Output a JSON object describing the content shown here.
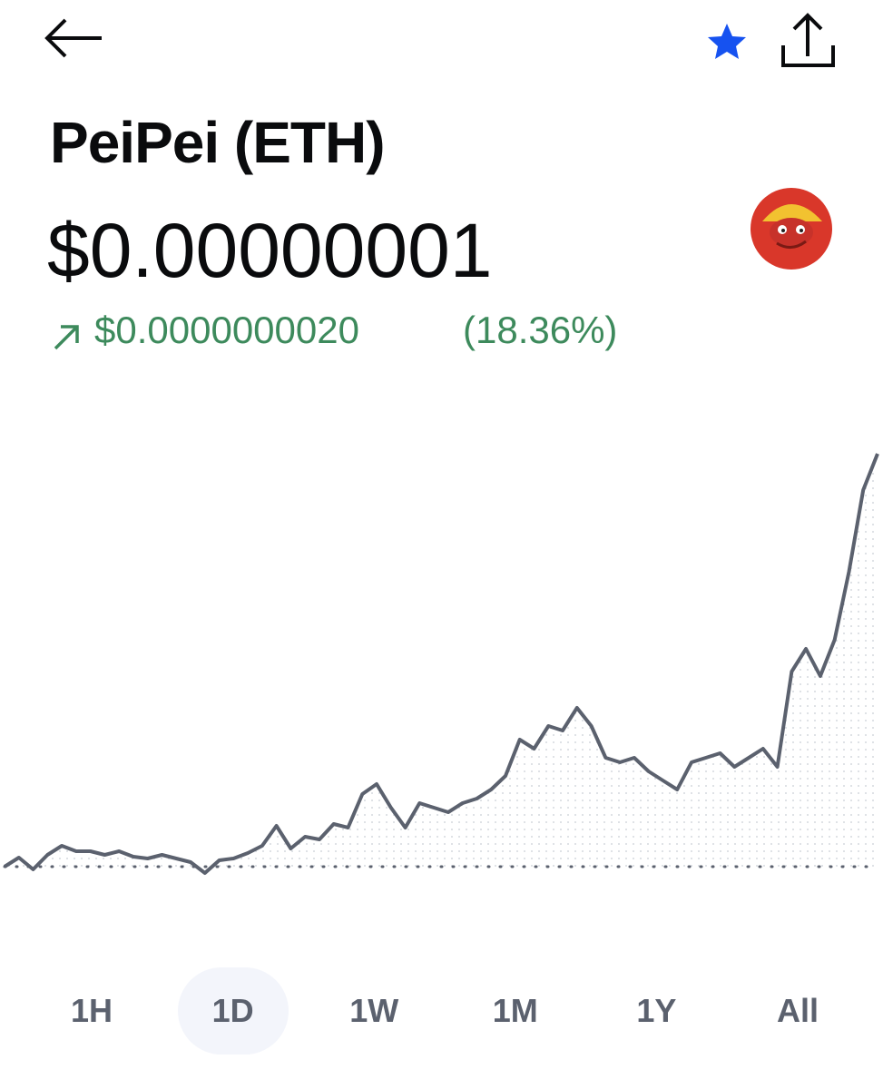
{
  "header": {
    "title": "PeiPei (ETH)",
    "price": "$0.00000001",
    "change": "$0.0000000020",
    "change_percent": "(18.36%)"
  },
  "chart_data": {
    "type": "line",
    "color": "#5b616e",
    "values": [
      5,
      7,
      4.4,
      7.6,
      9.6,
      8.4,
      8.4,
      7.6,
      8.4,
      7.2,
      6.8,
      7.6,
      6.8,
      6,
      3.6,
      6.4,
      6.8,
      8,
      9.6,
      14,
      9,
      11.6,
      11,
      14.4,
      13.6,
      21,
      23.2,
      18,
      13.6,
      19,
      18,
      17,
      19,
      20,
      22,
      25,
      33,
      31,
      36,
      35,
      40,
      36,
      29,
      28,
      29,
      26,
      24,
      22,
      28,
      29,
      30,
      27,
      29,
      31,
      27,
      48,
      53,
      47,
      55,
      70,
      88,
      96
    ],
    "reference": 5,
    "ylim": [
      0,
      100
    ]
  },
  "ranges": [
    "1H",
    "1D",
    "1W",
    "1M",
    "1Y",
    "All"
  ],
  "selected_range": 1
}
